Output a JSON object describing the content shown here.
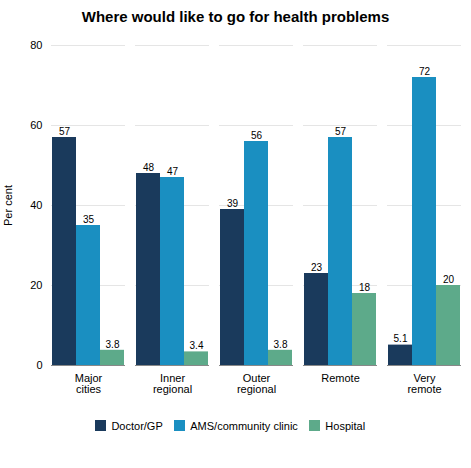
{
  "chart_data": {
    "type": "bar",
    "title": "Where would like to go for health problems",
    "categories": [
      "Major\ncities",
      "Inner\nregional",
      "Outer\nregional",
      "Remote",
      "Very\nremote"
    ],
    "series": [
      {
        "name": "Doctor/GP",
        "color": "#1a3a5c",
        "values": [
          57,
          48,
          39,
          23,
          5.1
        ]
      },
      {
        "name": "AMS/community clinic",
        "color": "#1a8fc1",
        "values": [
          35,
          47,
          56,
          57,
          72
        ]
      },
      {
        "name": "Hospital",
        "color": "#5daa8a",
        "values": [
          3.8,
          3.4,
          3.8,
          18,
          20
        ]
      }
    ],
    "ylabel": "Per cent",
    "ylim": [
      0,
      80
    ],
    "yticks": [
      0,
      20,
      40,
      60,
      80
    ],
    "grid": true,
    "legend": "bottom",
    "data_labels": true
  }
}
